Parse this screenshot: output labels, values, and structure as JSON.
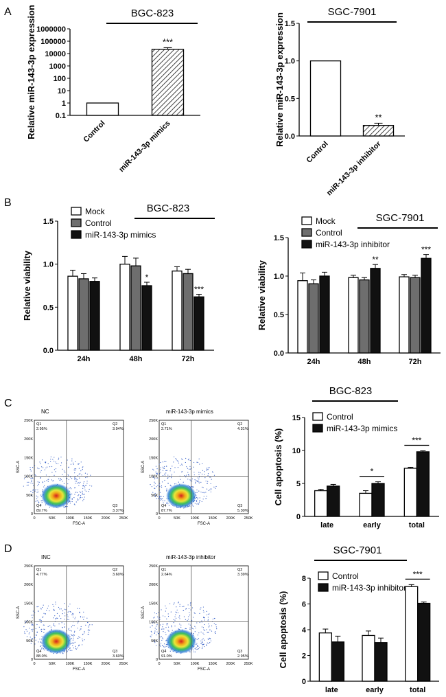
{
  "panel_labels": [
    "A",
    "B",
    "C",
    "D"
  ],
  "colors": {
    "white": "#ffffff",
    "gray": "#6e6e6e",
    "black": "#111111",
    "hatch": "#555555"
  },
  "chart_data": [
    {
      "id": "A1",
      "type": "bar",
      "scale": "log",
      "title": "BGC-823",
      "ylabel": "Relative miR-143-3p expression",
      "categories": [
        "Control",
        "miR-143-3p mimics"
      ],
      "values": [
        1,
        22000
      ],
      "errors": [
        0,
        8000
      ],
      "fills": [
        "white",
        "hatch"
      ],
      "significance": [
        "",
        "***"
      ],
      "ylim": [
        0.1,
        1000000
      ],
      "yticks": [
        "0.1",
        "1",
        "10",
        "100",
        "1000",
        "10000",
        "100000",
        "1000000"
      ]
    },
    {
      "id": "A2",
      "type": "bar",
      "title": "SGC-7901",
      "ylabel": "Relative miR-143-3p expression",
      "categories": [
        "Control",
        "miR-143-3p inhibitor"
      ],
      "values": [
        1.0,
        0.14
      ],
      "errors": [
        0,
        0.03
      ],
      "fills": [
        "white",
        "hatch"
      ],
      "significance": [
        "",
        "**"
      ],
      "ylim": [
        0,
        1.5
      ],
      "yticks": [
        "0.0",
        "0.5",
        "1.0",
        "1.5"
      ]
    },
    {
      "id": "B1",
      "type": "bar",
      "title": "BGC-823",
      "ylabel": "Relative viability",
      "categories": [
        "24h",
        "48h",
        "72h"
      ],
      "series": [
        {
          "name": "Mock",
          "fill": "white",
          "values": [
            0.86,
            1.0,
            0.92
          ],
          "errors": [
            0.07,
            0.09,
            0.05
          ],
          "significance": [
            "",
            "",
            ""
          ]
        },
        {
          "name": "Control",
          "fill": "gray",
          "values": [
            0.83,
            0.98,
            0.89
          ],
          "errors": [
            0.06,
            0.09,
            0.05
          ],
          "significance": [
            "",
            "",
            ""
          ]
        },
        {
          "name": "miR-143-3p mimics",
          "fill": "black",
          "values": [
            0.8,
            0.75,
            0.62
          ],
          "errors": [
            0.04,
            0.04,
            0.03
          ],
          "significance": [
            "",
            "*",
            "***"
          ]
        }
      ],
      "ylim": [
        0,
        1.5
      ],
      "yticks": [
        "0.0",
        "0.5",
        "1.0",
        "1.5"
      ]
    },
    {
      "id": "B2",
      "type": "bar",
      "title": "SGC-7901",
      "ylabel": "Relative viability",
      "categories": [
        "24h",
        "48h",
        "72h"
      ],
      "series": [
        {
          "name": "Mock",
          "fill": "white",
          "values": [
            0.94,
            0.98,
            0.99
          ],
          "errors": [
            0.1,
            0.03,
            0.03
          ],
          "significance": [
            "",
            "",
            ""
          ]
        },
        {
          "name": "Control",
          "fill": "gray",
          "values": [
            0.9,
            0.95,
            0.98
          ],
          "errors": [
            0.05,
            0.03,
            0.03
          ],
          "significance": [
            "",
            "",
            ""
          ]
        },
        {
          "name": "miR-143-3p inhibitor",
          "fill": "black",
          "values": [
            1.0,
            1.1,
            1.23
          ],
          "errors": [
            0.05,
            0.05,
            0.05
          ],
          "significance": [
            "",
            "**",
            "***"
          ]
        }
      ],
      "ylim": [
        0,
        1.5
      ],
      "yticks": [
        "0.0",
        "0.5",
        "1.0",
        "1.5"
      ]
    },
    {
      "id": "C",
      "type": "bar",
      "title": "BGC-823",
      "ylabel": "Cell apoptosis (%)",
      "categories": [
        "late",
        "early",
        "total"
      ],
      "series": [
        {
          "name": "Control",
          "fill": "white",
          "values": [
            3.9,
            3.5,
            7.3
          ],
          "errors": [
            0.2,
            0.4,
            0.15
          ]
        },
        {
          "name": "miR-143-3p mimics",
          "fill": "black",
          "values": [
            4.6,
            5.0,
            9.8
          ],
          "errors": [
            0.25,
            0.25,
            0.15
          ]
        }
      ],
      "brackets": [
        {
          "category": "early",
          "label": "*"
        },
        {
          "category": "total",
          "label": "***"
        }
      ],
      "ylim": [
        0,
        15
      ],
      "yticks": [
        "0",
        "5",
        "10",
        "15"
      ]
    },
    {
      "id": "D",
      "type": "bar",
      "title": "SGC-7901",
      "ylabel": "Cell apoptosis (%)",
      "categories": [
        "late",
        "early",
        "total"
      ],
      "series": [
        {
          "name": "Control",
          "fill": "white",
          "values": [
            3.75,
            3.55,
            7.35
          ],
          "errors": [
            0.3,
            0.35,
            0.15
          ]
        },
        {
          "name": "miR-143-3p inhibitor",
          "fill": "black",
          "values": [
            3.05,
            3.0,
            6.05
          ],
          "errors": [
            0.45,
            0.35,
            0.1
          ]
        }
      ],
      "brackets": [
        {
          "category": "total",
          "label": "***"
        }
      ],
      "ylim": [
        0,
        8
      ],
      "yticks": [
        "0",
        "2",
        "4",
        "6",
        "8"
      ]
    }
  ],
  "flow_plots": [
    {
      "title": "NC",
      "q1": "2.95%",
      "q2": "3.94%",
      "q3": "3.37%",
      "q4": "89.7%",
      "xlabel": "FSC-A",
      "ylabel": "SSC-A",
      "xticks": [
        "0",
        "50K",
        "100K",
        "150K",
        "200K",
        "250K"
      ],
      "yticks": [
        "0",
        "50K",
        "100K",
        "150K",
        "200K",
        "250K"
      ]
    },
    {
      "title": "miR-143-3p mimics",
      "q1": "2.71%",
      "q2": "4.31%",
      "q3": "5.30%",
      "q4": "87.7%",
      "xlabel": "FSC-A",
      "ylabel": "SSC-A",
      "xticks": [
        "0",
        "50K",
        "100K",
        "150K",
        "200K",
        "250K"
      ],
      "yticks": [
        "0",
        "50K",
        "100K",
        "150K",
        "200K",
        "250K"
      ]
    },
    {
      "title": "INC",
      "q1": "4.77%",
      "q2": "3.60%",
      "q3": "3.60%",
      "q4": "88.0%",
      "xlabel": "FSC-A",
      "ylabel": "SSC-A",
      "xticks": [
        "0",
        "50K",
        "100K",
        "150K",
        "200K",
        "250K"
      ],
      "yticks": [
        "0",
        "50K",
        "100K",
        "150K",
        "200K",
        "250K"
      ]
    },
    {
      "title": "miR-143-3p inhibitor",
      "q1": "2.64%",
      "q2": "3.39%",
      "q3": "2.95%",
      "q4": "91.0%",
      "xlabel": "FSC-A",
      "ylabel": "SSC-A",
      "xticks": [
        "0",
        "50K",
        "100K",
        "150K",
        "200K",
        "250K"
      ],
      "yticks": [
        "0",
        "50K",
        "100K",
        "150K",
        "200K",
        "250K"
      ]
    }
  ]
}
